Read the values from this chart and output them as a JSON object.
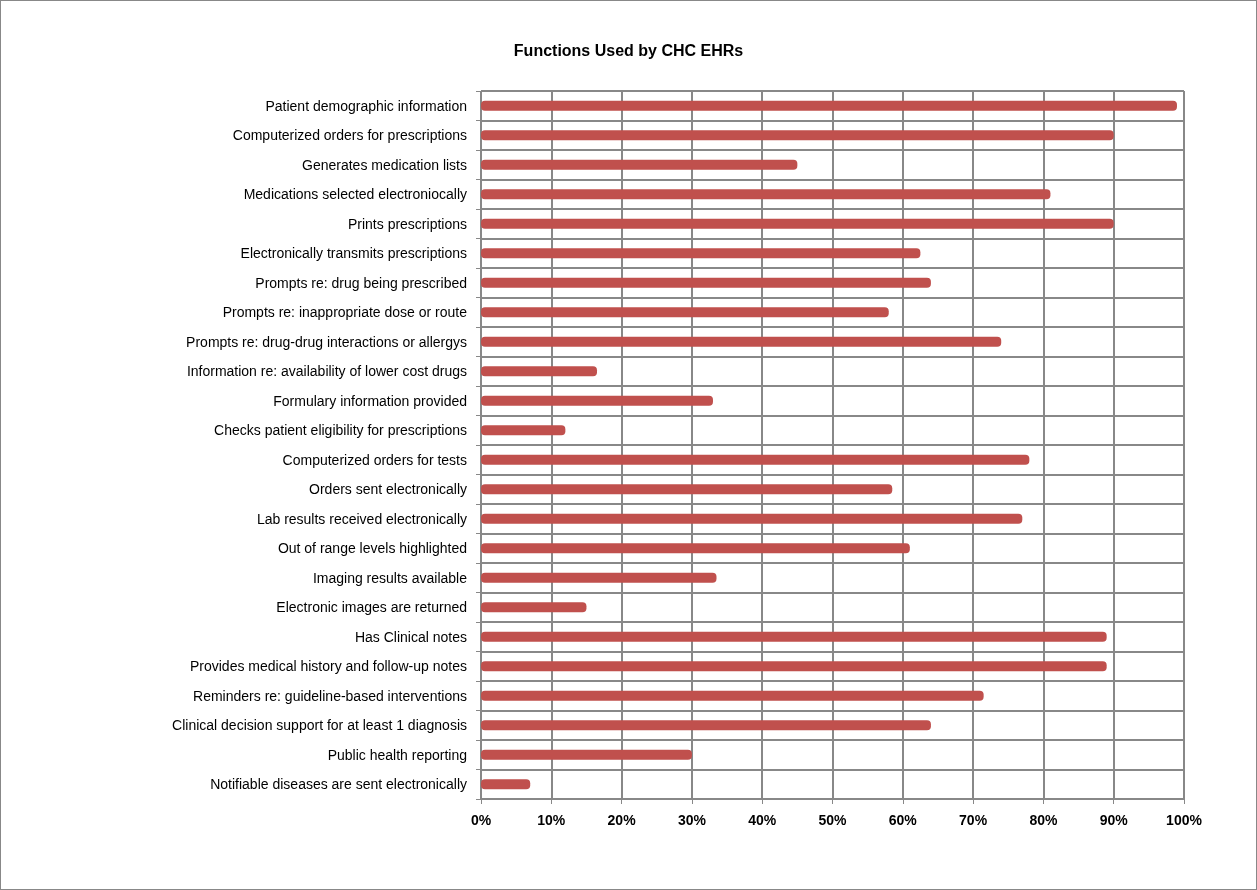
{
  "chart_data": {
    "type": "bar",
    "orientation": "horizontal",
    "title": "Functions Used by CHC EHRs",
    "categories": [
      "Patient demographic information",
      "Computerized orders for prescriptions",
      "Generates medication lists",
      "Medications selected electroniocally",
      "Prints prescriptions",
      "Electronically transmits prescriptions",
      "Prompts re: drug being prescribed",
      "Prompts re: inappropriate dose or route",
      "Prompts re: drug-drug interactions or allergys",
      "Information re: availability of lower cost drugs",
      "Formulary information provided",
      "Checks patient eligibility for prescriptions",
      "Computerized orders for tests",
      "Orders sent electronically",
      "Lab results received electronically",
      "Out of range levels highlighted",
      "Imaging results available",
      "Electronic images are returned",
      "Has Clinical notes",
      "Provides medical history and follow-up notes",
      "Reminders re: guideline-based interventions",
      "Clinical decision support for at least 1 diagnosis",
      "Public health reporting",
      "Notifiable diseases are sent electronically"
    ],
    "values": [
      99,
      90,
      45,
      81,
      90,
      62.5,
      64,
      58,
      74,
      16.5,
      33,
      12,
      78,
      58.5,
      77,
      61,
      33.5,
      15,
      89,
      89,
      71.5,
      64,
      30,
      7
    ],
    "color": "#c0504d",
    "xlim": [
      0,
      100
    ],
    "xticks": [
      {
        "value": 0,
        "label": "0%"
      },
      {
        "value": 10,
        "label": "10%"
      },
      {
        "value": 20,
        "label": "20%"
      },
      {
        "value": 30,
        "label": "30%"
      },
      {
        "value": 40,
        "label": "40%"
      },
      {
        "value": 50,
        "label": "50%"
      },
      {
        "value": 60,
        "label": "60%"
      },
      {
        "value": 70,
        "label": "70%"
      },
      {
        "value": 80,
        "label": "80%"
      },
      {
        "value": 90,
        "label": "90%"
      },
      {
        "value": 100,
        "label": "100%"
      }
    ],
    "grid": true
  }
}
